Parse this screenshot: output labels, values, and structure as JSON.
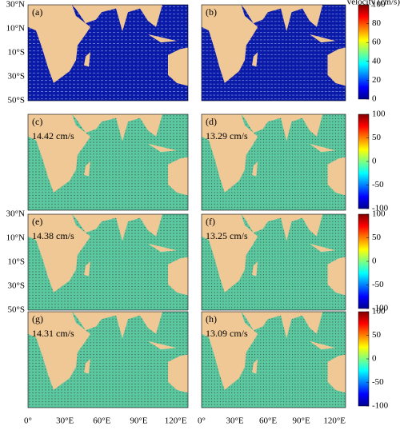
{
  "colorbar_title": "velocity (cm/s)",
  "panels": [
    {
      "label": "(a)"
    },
    {
      "label": "(b)"
    },
    {
      "label": "(c)",
      "annotation": "14.42 cm/s"
    },
    {
      "label": "(d)",
      "annotation": "13.29 cm/s"
    },
    {
      "label": "(e)",
      "annotation": "14.38 cm/s"
    },
    {
      "label": "(f)",
      "annotation": "13.25 cm/s"
    },
    {
      "label": "(g)",
      "annotation": "14.31 cm/s"
    },
    {
      "label": "(h)",
      "annotation": "13.09 cm/s"
    }
  ],
  "colorbars": [
    {
      "ticks": [
        100,
        80,
        60,
        40,
        20,
        0
      ]
    },
    {
      "ticks": [
        100,
        50,
        0,
        -50,
        -100
      ]
    },
    {
      "ticks": [
        100,
        50,
        0,
        -50,
        -100
      ]
    },
    {
      "ticks": [
        100,
        50,
        0,
        -50,
        -100
      ]
    }
  ],
  "y_axis_labels": [
    "30°N",
    "10°N",
    "10°S",
    "30°S",
    "50°S"
  ],
  "x_axis_labels": [
    "0°",
    "30°E",
    "60°E",
    "90°E",
    "120°E"
  ]
}
